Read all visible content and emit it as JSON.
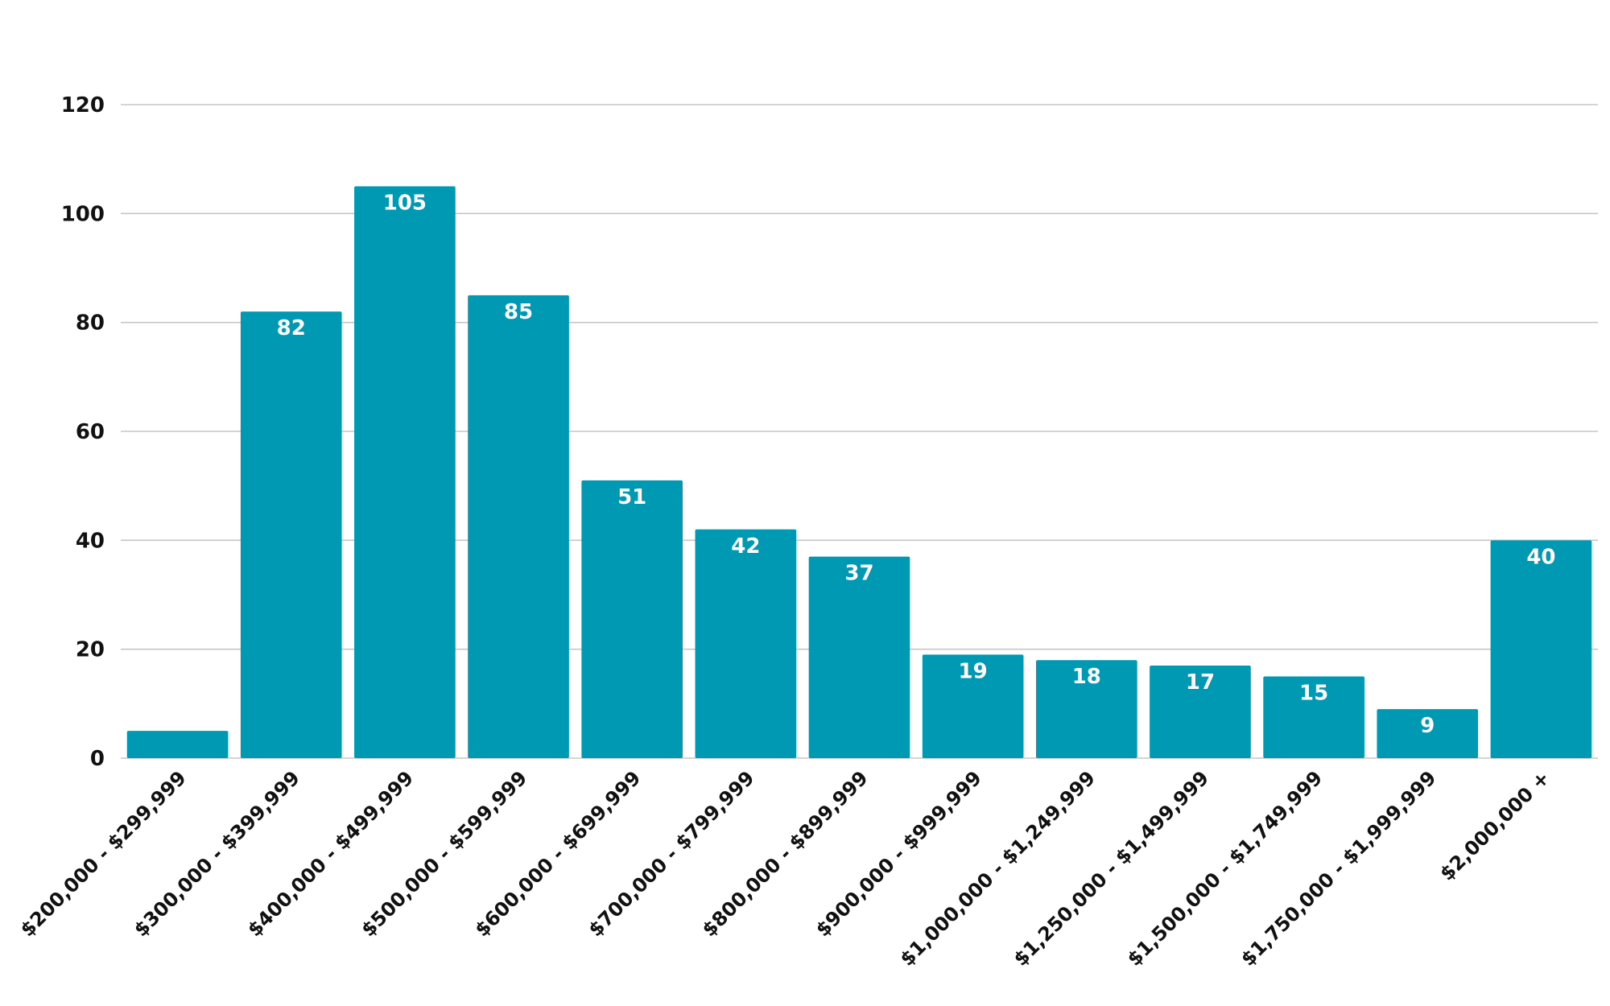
{
  "chart_data": {
    "type": "bar",
    "title": "",
    "xlabel": "",
    "ylabel": "",
    "categories": [
      "$200,000 - $299,999",
      "$300,000 - $399,999",
      "$400,000 - $499,999",
      "$500,000 - $599,999",
      "$600,000 - $699,999",
      "$700,000 - $799,999",
      "$800,000 - $899,999",
      "$900,000 - $999,999",
      "$1,000,000 - $1,249,999",
      "$1,250,000 - $1,499,999",
      "$1,500,000 - $1,749,999",
      "$1,750,000 - $1,999,999",
      "$2,000,000 +"
    ],
    "values": [
      5,
      82,
      105,
      85,
      51,
      42,
      37,
      19,
      18,
      17,
      15,
      9,
      40
    ],
    "data_labels": [
      "",
      "82",
      "105",
      "85",
      "51",
      "42",
      "37",
      "19",
      "18",
      "17",
      "15",
      "9",
      "40"
    ],
    "ylim": [
      0,
      120
    ],
    "yticks": [
      0,
      20,
      40,
      60,
      80,
      100,
      120
    ],
    "grid": true,
    "legend": "none",
    "colors": {
      "bar": "#0099b3",
      "grid": "#c6c6c6",
      "tick_text": "#111111",
      "bar_label": "#ffffff"
    }
  }
}
